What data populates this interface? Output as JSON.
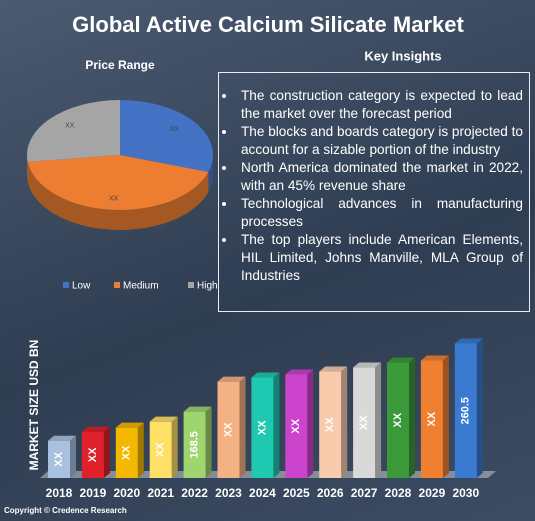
{
  "title": "Global Active Calcium Silicate Market",
  "insights": {
    "heading": "Key Insights",
    "items": [
      "The construction category is expected to lead the market over the forecast period",
      "The blocks and boards category is projected to account for a sizable portion of the industry",
      "North America dominated the market in 2022, with an 45% revenue share",
      "Technological advances in manufacturing processes",
      "The top players include American Elements, HIL Limited, Johns Manville, MLA Group of Industries"
    ]
  },
  "chart_data": [
    {
      "type": "pie",
      "title": "Price Range",
      "categories": [
        "Low",
        "Medium",
        "High"
      ],
      "values": [
        30,
        43,
        27
      ],
      "value_labels": [
        "XX",
        "XX",
        "XX"
      ],
      "colors": [
        "#4472c4",
        "#ed7d31",
        "#a5a5a5"
      ],
      "legend": "bottom"
    },
    {
      "type": "bar",
      "ylabel": "MARKET SIZE USD BN",
      "categories": [
        "2018",
        "2019",
        "2020",
        "2021",
        "2022",
        "2023",
        "2024",
        "2025",
        "2026",
        "2027",
        "2028",
        "2029",
        "2030"
      ],
      "values": [
        129.3,
        141.4,
        146.9,
        155,
        168.5,
        209,
        214.5,
        218.6,
        222.6,
        228,
        234.8,
        237.5,
        260.5
      ],
      "value_labels": [
        "XX",
        "XX",
        "XX",
        "XX",
        "168.5",
        "XX",
        "XX",
        "XX",
        "XX",
        "XX",
        "XX",
        "XX",
        "260.5"
      ],
      "colors": [
        "#a9c1e0",
        "#e0202a",
        "#f5b800",
        "#ffe066",
        "#9fd46e",
        "#f4b183",
        "#1fc8b0",
        "#cc44cc",
        "#f8cbad",
        "#d9d9d9",
        "#3a9a3a",
        "#f08030",
        "#3a7ad0"
      ],
      "ylim": [
        79,
        280
      ]
    }
  ],
  "footer": "Copyright © Credence Research"
}
